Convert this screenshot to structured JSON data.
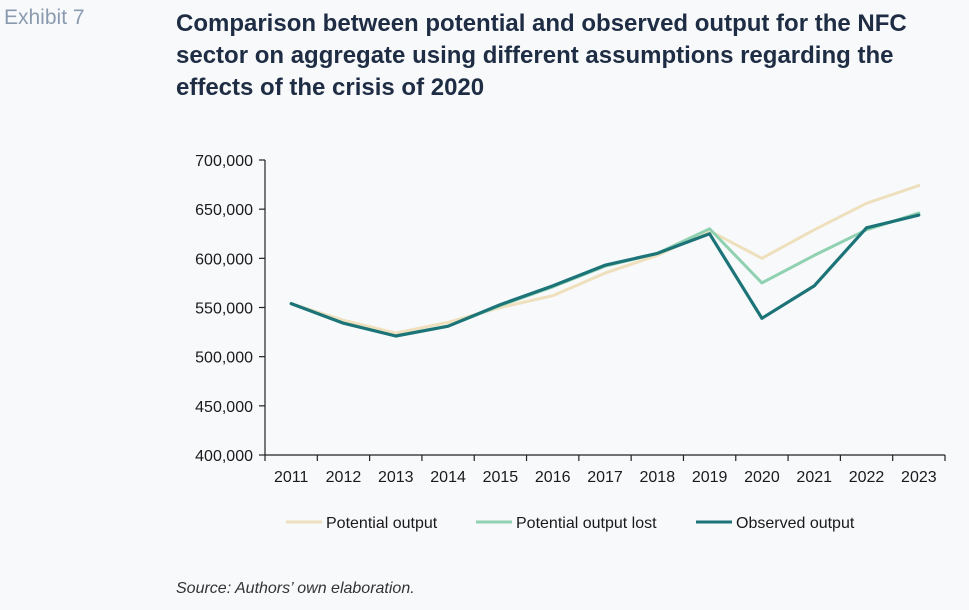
{
  "header": {
    "exhibit": "Exhibit 7",
    "title": "Comparison between potential and observed output for the NFC sector on aggregate using different assumptions regarding the effects of the crisis of 2020"
  },
  "footer": {
    "source": "Source: Authors’ own elaboration."
  },
  "chart_data": {
    "type": "line",
    "title": "",
    "xlabel": "",
    "ylabel": "",
    "categories": [
      "2011",
      "2012",
      "2013",
      "2014",
      "2015",
      "2016",
      "2017",
      "2018",
      "2019",
      "2020",
      "2021",
      "2022",
      "2023"
    ],
    "ylim": [
      400000,
      700000
    ],
    "yticks": [
      400000,
      450000,
      500000,
      550000,
      600000,
      650000,
      700000
    ],
    "ytick_labels": [
      "400,000",
      "450,000",
      "500,000",
      "550,000",
      "600,000",
      "650,000",
      "700,000"
    ],
    "grid": false,
    "legend_position": "bottom",
    "series": [
      {
        "name": "Potential output",
        "color": "#efe0bd",
        "values": [
          554000,
          537000,
          524000,
          535000,
          550000,
          562000,
          585000,
          603000,
          628000,
          600000,
          629000,
          656000,
          674000
        ]
      },
      {
        "name": "Potential output lost",
        "color": "#8fd1b1",
        "values": [
          554000,
          534000,
          521000,
          531000,
          552000,
          571000,
          592000,
          605000,
          630000,
          575000,
          603000,
          629000,
          646000
        ]
      },
      {
        "name": "Observed output",
        "color": "#1c7478",
        "values": [
          554000,
          534000,
          521000,
          531000,
          553000,
          572000,
          593000,
          605000,
          625000,
          539000,
          572000,
          631000,
          644000
        ]
      }
    ]
  }
}
